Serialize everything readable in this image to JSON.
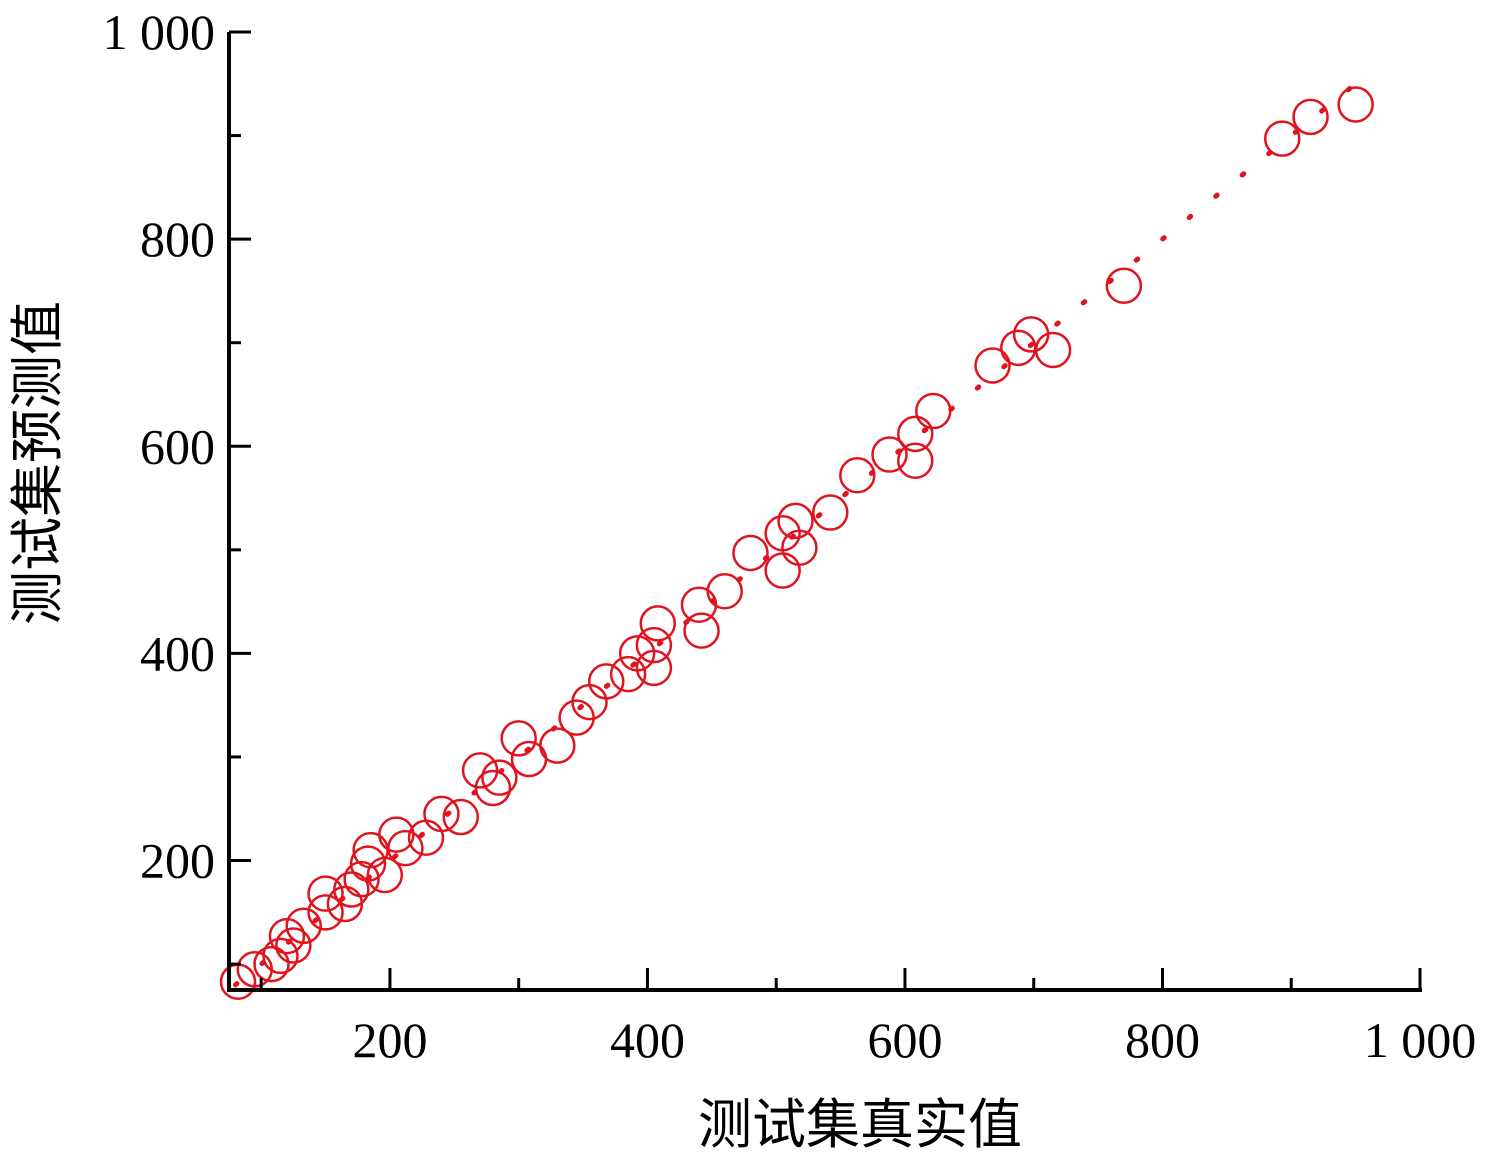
{
  "chart_data": {
    "type": "scatter",
    "xlabel": "测试集真实值",
    "ylabel": "测试集预测值",
    "xlim": [
      75,
      1000
    ],
    "ylim": [
      75,
      1000
    ],
    "x_ticks": [
      200,
      400,
      600,
      800,
      1000
    ],
    "y_ticks": [
      200,
      400,
      600,
      800,
      1000
    ],
    "x_tick_labels": [
      "200",
      "400",
      "600",
      "800",
      "1 000"
    ],
    "y_tick_labels": [
      "200",
      "400",
      "600",
      "800",
      "1 000"
    ],
    "x_minor_ticks": [
      100,
      300,
      500,
      700,
      900
    ],
    "y_minor_ticks": [
      100,
      300,
      500,
      700,
      900
    ],
    "marker": "open-circle",
    "marker_color": "#e0141e",
    "fit_line_color": "#e0141e",
    "fit_line_style": "dotted",
    "grid": false,
    "series": [
      {
        "points": [
          [
            82,
            83
          ],
          [
            95,
            95
          ],
          [
            108,
            100
          ],
          [
            115,
            108
          ],
          [
            120,
            127
          ],
          [
            125,
            118
          ],
          [
            133,
            137
          ],
          [
            150,
            150
          ],
          [
            150,
            168
          ],
          [
            165,
            158
          ],
          [
            170,
            172
          ],
          [
            178,
            182
          ],
          [
            183,
            197
          ],
          [
            185,
            210
          ],
          [
            196,
            186
          ],
          [
            205,
            225
          ],
          [
            212,
            212
          ],
          [
            228,
            222
          ],
          [
            240,
            245
          ],
          [
            255,
            242
          ],
          [
            270,
            287
          ],
          [
            280,
            270
          ],
          [
            285,
            280
          ],
          [
            300,
            318
          ],
          [
            308,
            298
          ],
          [
            330,
            311
          ],
          [
            345,
            338
          ],
          [
            355,
            353
          ],
          [
            368,
            373
          ],
          [
            385,
            380
          ],
          [
            392,
            400
          ],
          [
            405,
            386
          ],
          [
            405,
            408
          ],
          [
            408,
            429
          ],
          [
            440,
            447
          ],
          [
            442,
            422
          ],
          [
            460,
            460
          ],
          [
            480,
            497
          ],
          [
            505,
            516
          ],
          [
            505,
            480
          ],
          [
            515,
            528
          ],
          [
            518,
            502
          ],
          [
            542,
            536
          ],
          [
            563,
            572
          ],
          [
            588,
            592
          ],
          [
            608,
            612
          ],
          [
            608,
            586
          ],
          [
            622,
            634
          ],
          [
            668,
            678
          ],
          [
            688,
            695
          ],
          [
            698,
            708
          ],
          [
            715,
            693
          ],
          [
            770,
            755
          ],
          [
            893,
            897
          ],
          [
            915,
            918
          ],
          [
            950,
            930
          ]
        ]
      }
    ],
    "fit_line": {
      "x": [
        80,
        960
      ],
      "y": [
        80,
        960
      ]
    }
  }
}
